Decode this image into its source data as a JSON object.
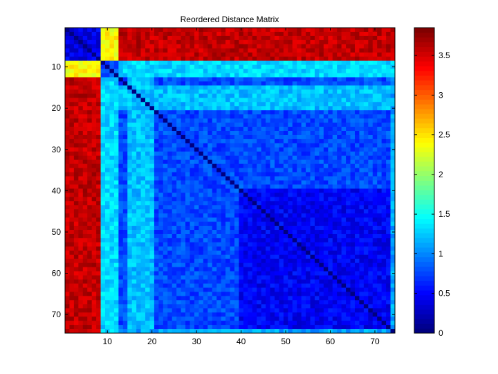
{
  "chart_data": {
    "type": "heatmap",
    "title": "Reordered Distance Matrix",
    "xlabel": "",
    "ylabel": "",
    "n": 74,
    "xlim": [
      0.5,
      74.5
    ],
    "ylim": [
      0.5,
      74.5
    ],
    "y_direction": "reverse",
    "x_ticks": [
      10,
      20,
      30,
      40,
      50,
      60,
      70
    ],
    "y_ticks": [
      10,
      20,
      30,
      40,
      50,
      60,
      70
    ],
    "colormap": "jet",
    "color_range": [
      0,
      3.85
    ],
    "colorbar_ticks": [
      0,
      0.5,
      1,
      1.5,
      2,
      2.5,
      3,
      3.5
    ],
    "diagonal_value": 0,
    "block_approximation": {
      "group_a_rows": [
        1,
        8
      ],
      "group_b_rows": [
        9,
        12
      ],
      "group_c_rows": [
        13,
        74
      ],
      "within_a": 0.4,
      "a_vs_b_c_cols_9_12": 2.4,
      "a_vs_c": 3.6,
      "b_vs_b": 0.8,
      "b_vs_c": 1.3,
      "c_vs_c": 0.75,
      "c_rows_40_74_vs_c_cols_40_74": 0.45,
      "c_rows_vs_cols_15_20": 1.2,
      "c_col_74": 1.1
    }
  }
}
